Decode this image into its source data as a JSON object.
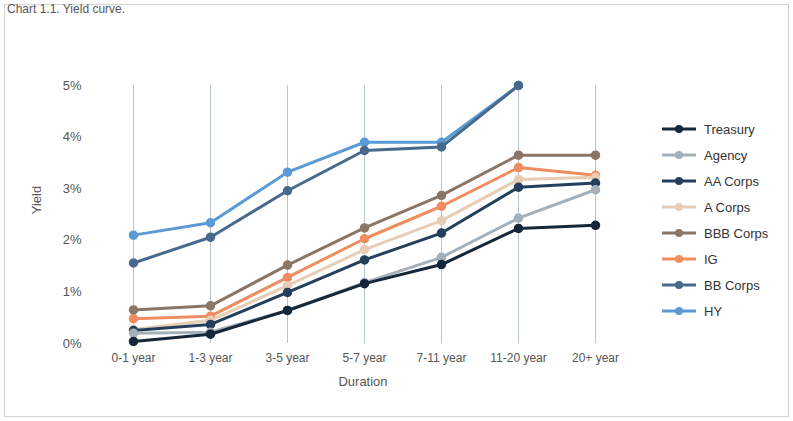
{
  "chart_data": {
    "type": "line",
    "title": "Chart 1.1. Yield curve.",
    "x_label": "Duration",
    "y_label": "Yield",
    "categories": [
      "0-1 year",
      "1-3 year",
      "3-5 year",
      "5-7 year",
      "7-11 year",
      "11-20 year",
      "20+ year"
    ],
    "series": [
      {
        "name": "Treasury",
        "color": "#15273a",
        "values": [
          0.04,
          0.18,
          0.64,
          1.16,
          1.53,
          2.23,
          2.29
        ]
      },
      {
        "name": "Agency",
        "color": "#a4b0ba",
        "values": [
          0.2,
          0.22,
          0.64,
          1.18,
          1.67,
          2.43,
          2.98
        ]
      },
      {
        "name": "AA Corps",
        "color": "#243f5c",
        "values": [
          0.25,
          0.37,
          0.99,
          1.62,
          2.14,
          3.03,
          3.11
        ]
      },
      {
        "name": "A Corps",
        "color": "#e6cdb3",
        "values": [
          0.27,
          0.45,
          1.12,
          1.82,
          2.38,
          3.18,
          3.22
        ]
      },
      {
        "name": "BBB Corps",
        "color": "#8b7666",
        "values": [
          0.65,
          0.73,
          1.52,
          2.24,
          2.87,
          3.65,
          3.65
        ]
      },
      {
        "name": "IG",
        "color": "#f08d60",
        "values": [
          0.48,
          0.53,
          1.28,
          2.03,
          2.66,
          3.41,
          3.26
        ]
      },
      {
        "name": "BB Corps",
        "color": "#476a8c",
        "values": [
          1.56,
          2.06,
          2.96,
          3.74,
          3.81,
          5.0,
          null
        ]
      },
      {
        "name": "HY",
        "color": "#5a9ad6",
        "values": [
          2.1,
          2.34,
          3.32,
          3.9,
          3.9,
          5.0,
          null
        ]
      }
    ],
    "ylim": [
      0,
      5
    ],
    "yticks": [
      {
        "value": 0,
        "label": "0%"
      },
      {
        "value": 1,
        "label": "1%"
      },
      {
        "value": 2,
        "label": "2%"
      },
      {
        "value": 3,
        "label": "3%"
      },
      {
        "value": 4,
        "label": "4%"
      },
      {
        "value": 5,
        "label": "5%"
      }
    ],
    "grid": "x",
    "legend": "right",
    "marker": "circle"
  }
}
